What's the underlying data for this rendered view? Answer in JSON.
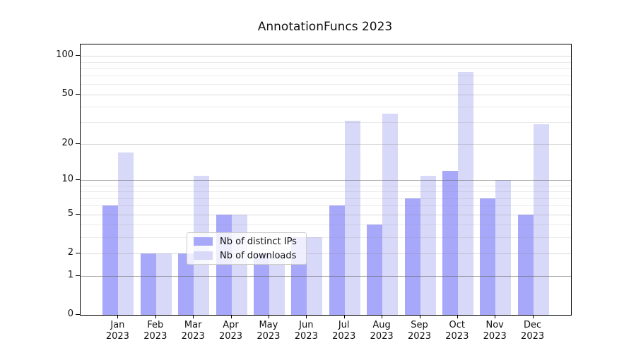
{
  "chart_data": {
    "type": "bar",
    "title": "AnnotationFuncs 2023",
    "categories": [
      "Jan",
      "Feb",
      "Mar",
      "Apr",
      "May",
      "Jun",
      "Jul",
      "Aug",
      "Sep",
      "Oct",
      "Nov",
      "Dec"
    ],
    "category_year": "2023",
    "series": [
      {
        "name": "Nb of distinct IPs",
        "color": "#a8a8fa",
        "values": [
          6,
          2,
          2,
          5,
          2,
          3,
          6,
          4,
          7,
          12,
          7,
          5
        ]
      },
      {
        "name": "Nb of downloads",
        "color": "#d8d8f9",
        "values": [
          17,
          2,
          11,
          5,
          2,
          3,
          31,
          35,
          11,
          75,
          10,
          29
        ]
      }
    ],
    "xlabel": "",
    "ylabel": "",
    "yscale": "log1p",
    "ylim": [
      0,
      123
    ],
    "yticks": [
      0,
      1,
      2,
      5,
      10,
      20,
      50,
      100
    ],
    "ytick_labels": [
      "0",
      "1",
      "2",
      "5",
      "10",
      "20",
      "50",
      "100"
    ],
    "gridlines": {
      "emphasized": [
        1,
        10
      ],
      "major": [
        2,
        5,
        20,
        50,
        100
      ],
      "minor": [
        3,
        4,
        6,
        7,
        8,
        9,
        30,
        40,
        60,
        70,
        80,
        90
      ]
    },
    "grid": true,
    "legend": {
      "position": "lower center",
      "labels": [
        "Nb of distinct IPs",
        "Nb of downloads"
      ]
    }
  }
}
